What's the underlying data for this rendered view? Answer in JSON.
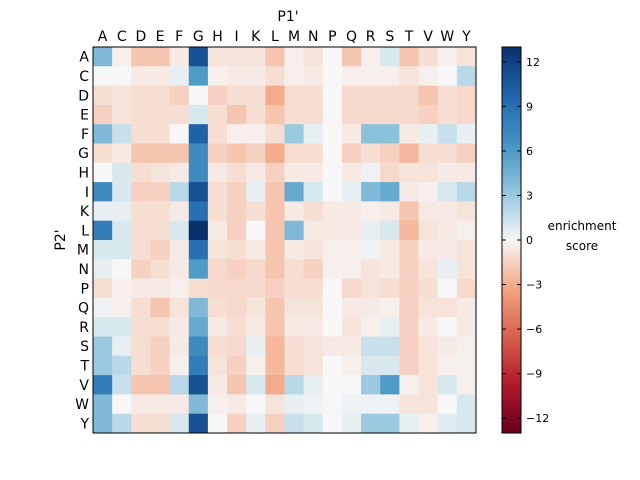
{
  "chart_data": {
    "type": "heatmap",
    "title": "P1'",
    "xlabel": "P1'",
    "ylabel": "P2'",
    "x_categories": [
      "A",
      "C",
      "D",
      "E",
      "F",
      "G",
      "H",
      "I",
      "K",
      "L",
      "M",
      "N",
      "P",
      "Q",
      "R",
      "S",
      "T",
      "V",
      "W",
      "Y"
    ],
    "y_categories": [
      "A",
      "C",
      "D",
      "E",
      "F",
      "G",
      "H",
      "I",
      "K",
      "L",
      "M",
      "N",
      "P",
      "Q",
      "R",
      "S",
      "T",
      "V",
      "W",
      "Y"
    ],
    "values": [
      [
        4,
        -0.3,
        -2,
        -2,
        -0.5,
        11,
        -0.8,
        -0.8,
        -0.8,
        -2,
        -0.3,
        -0.8,
        0,
        -2,
        -0.3,
        1,
        -2,
        -1,
        -0.3,
        -0.8
      ],
      [
        0,
        0,
        -0.5,
        -0.5,
        0.5,
        6,
        -0.3,
        -0.5,
        -0.5,
        -1,
        -0.3,
        -0.5,
        0,
        -0.3,
        -0.3,
        -0.3,
        -0.8,
        -0.3,
        0,
        2
      ],
      [
        -1,
        -0.8,
        -1,
        -1,
        -1.5,
        0,
        -1.5,
        -1,
        -1,
        -3,
        -1,
        -1,
        0,
        -1.2,
        -1.2,
        -1.2,
        -1.2,
        -2,
        -1,
        -1.2
      ],
      [
        -1.5,
        -0.8,
        -1,
        -1,
        -1,
        1,
        -1,
        -2,
        -1,
        -2,
        -1,
        -1,
        0,
        -1.2,
        -1.2,
        -1.2,
        -1.2,
        -1.5,
        -1,
        -1.2
      ],
      [
        4,
        1.5,
        -1,
        -1,
        0,
        10,
        -1,
        -0.3,
        -0.3,
        -1,
        3,
        0.5,
        0,
        -0.5,
        3.5,
        3.5,
        -0.5,
        0.5,
        1.5,
        0.5
      ],
      [
        -1,
        -0.5,
        -2,
        -2,
        -2,
        7,
        -1.5,
        -2,
        -1.5,
        -3,
        -1,
        -1,
        0,
        -1.5,
        -1,
        -1.5,
        -2.5,
        -1,
        -1,
        -1.5
      ],
      [
        0,
        1,
        -1,
        -0.8,
        -0.5,
        7,
        -0.5,
        -1,
        -0.5,
        -1.5,
        -0.5,
        -0.5,
        0,
        -0.5,
        0.3,
        -1.2,
        -0.8,
        -0.8,
        -0.5,
        -0.5
      ],
      [
        7,
        1,
        -1.5,
        -1.5,
        2,
        11,
        -1,
        -1.5,
        0.5,
        -2,
        5,
        1,
        0,
        0.5,
        4,
        5,
        -0.5,
        -0.3,
        1,
        2
      ],
      [
        0.5,
        0.5,
        -1,
        -1,
        -0.5,
        9,
        -1,
        -1.5,
        -1,
        -2,
        -0.5,
        -1,
        -0.5,
        -0.5,
        -0.3,
        -0.5,
        -2,
        -0.5,
        -0.5,
        -0.8
      ],
      [
        8,
        1,
        -1,
        -1,
        1,
        13,
        -0.5,
        -1.5,
        0,
        -2,
        4,
        -0.5,
        -0.5,
        -0.5,
        0.5,
        1,
        -2.5,
        -0.8,
        -0.5,
        -0.3
      ],
      [
        1,
        1,
        -1,
        -1.5,
        -0.5,
        9,
        -0.8,
        -1,
        -0.5,
        -2,
        -0.5,
        -0.8,
        -0.3,
        -0.3,
        0.3,
        -0.5,
        -1.5,
        -0.5,
        -0.5,
        -0.8
      ],
      [
        0.5,
        0,
        -1.5,
        -1,
        -0.5,
        6,
        -1.2,
        -1.5,
        -1.2,
        -2,
        -1,
        -1.5,
        -0.3,
        -0.3,
        -0.8,
        -0.5,
        -1.5,
        -0.8,
        0.5,
        -0.8
      ],
      [
        -1,
        -0.3,
        -0.5,
        -0.5,
        -0.3,
        -1,
        -1.2,
        -1.2,
        -1.2,
        -1.5,
        -1,
        -1,
        0,
        -1.2,
        -0.8,
        -1,
        -1.5,
        -1,
        0,
        -1.2
      ],
      [
        0.3,
        -0.3,
        -1,
        -2,
        -0.8,
        4,
        -1,
        -1.2,
        -0.8,
        -2,
        -0.8,
        -0.8,
        0,
        -0.5,
        -0.5,
        -0.3,
        -1.5,
        -0.8,
        -0.8,
        -0.5
      ],
      [
        1,
        1,
        -1,
        -1,
        -0.5,
        5,
        -0.5,
        -1,
        -0.5,
        -2,
        -0.5,
        -0.5,
        0,
        -0.8,
        -0.3,
        0.5,
        -1.5,
        -0.5,
        0,
        -0.5
      ],
      [
        3,
        0.5,
        -1,
        -1.5,
        -0.5,
        7,
        -1,
        -1.2,
        0.5,
        -2.5,
        -1,
        -0.8,
        -0.5,
        -0.5,
        1.5,
        1.5,
        -1.5,
        -0.8,
        -0.5,
        -0.3
      ],
      [
        3,
        2,
        -1,
        -1.5,
        -0.3,
        8,
        -0.8,
        -1.5,
        -0.3,
        -2.5,
        -1,
        -0.8,
        0,
        -0.3,
        1,
        1,
        -1.5,
        -0.8,
        -0.3,
        -0.3
      ],
      [
        8,
        1.5,
        -2,
        -2,
        2,
        11,
        -0.5,
        -2,
        1,
        -3,
        2,
        0.5,
        0,
        0,
        3,
        6,
        -0.3,
        -0.8,
        1,
        -0.3
      ],
      [
        4,
        0,
        -0.5,
        -0.5,
        -0.5,
        4,
        -0.3,
        -0.5,
        0,
        -0.8,
        0.5,
        0.3,
        0,
        0.3,
        0.3,
        0.3,
        -0.8,
        -0.8,
        0,
        1
      ],
      [
        4,
        2,
        -1,
        -1,
        1,
        11,
        0,
        -1.5,
        0.5,
        -1.5,
        1.5,
        1,
        0,
        0.5,
        3,
        3,
        0.5,
        -0.3,
        0.8,
        1
      ]
    ],
    "colorbar": {
      "label_line1": "enrichment",
      "label_line2": "score",
      "ticks": [
        "12",
        "9",
        "6",
        "3",
        "0",
        "−3",
        "−6",
        "−9",
        "−12"
      ],
      "tick_values": [
        12,
        9,
        6,
        3,
        0,
        -3,
        -6,
        -9,
        -12
      ],
      "range": [
        -13,
        13
      ],
      "colormap": "diverging red-white-blue"
    }
  }
}
